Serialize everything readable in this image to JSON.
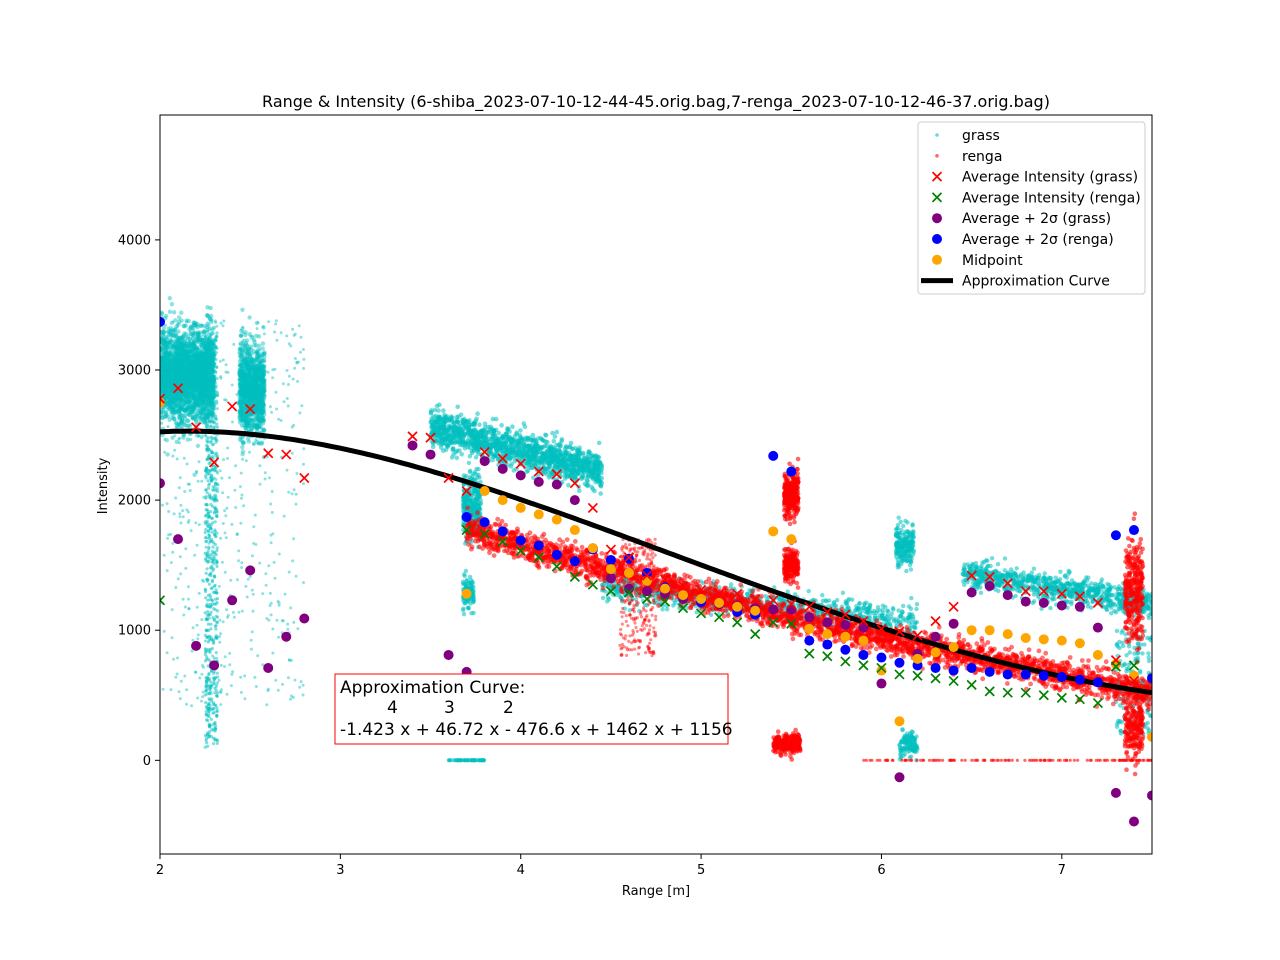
{
  "chart_data": {
    "type": "scatter",
    "title": "Range & Intensity (6-shiba_2023-07-10-12-44-45.orig.bag,7-renga_2023-07-10-12-46-37.orig.bag)",
    "xlabel": "Range [m]",
    "ylabel": "Intensity",
    "xlim": [
      2,
      7.5
    ],
    "ylim": [
      -720,
      4960
    ],
    "xticks": [
      2,
      3,
      4,
      5,
      6,
      7
    ],
    "yticks": [
      0,
      1000,
      2000,
      3000,
      4000
    ],
    "grid": false,
    "legend_position": "top-right",
    "legend": [
      {
        "label": "grass",
        "marker": "dot",
        "color": "#00bfbf"
      },
      {
        "label": "renga",
        "marker": "dot",
        "color": "#ff0000"
      },
      {
        "label": "Average Intensity (grass)",
        "marker": "x",
        "color": "#ff0000"
      },
      {
        "label": "Average Intensity (renga)",
        "marker": "x",
        "color": "#008000"
      },
      {
        "label": "Average + 2σ (grass)",
        "marker": "circle",
        "color": "#800080"
      },
      {
        "label": "Average + 2σ (renga)",
        "marker": "circle",
        "color": "#0000ff"
      },
      {
        "label": "Midpoint",
        "marker": "circle",
        "color": "#ffa500"
      },
      {
        "label": "Approximation Curve",
        "marker": "line",
        "color": "#000000"
      }
    ],
    "annotation": {
      "line1": "Approximation Curve:",
      "exponents": [
        "4",
        "3",
        "2"
      ],
      "line3": "-1.423 x + 46.72 x - 476.6 x + 1462 x + 1156",
      "border_color": "#ff0000"
    },
    "approximation_curve": {
      "coefficients": [
        -1.423,
        46.72,
        -476.6,
        1462,
        1156
      ],
      "color": "#000000"
    },
    "series": [
      {
        "name": "Average Intensity (grass)",
        "marker": "x",
        "color": "#ff0000",
        "points": [
          [
            2.0,
            2780
          ],
          [
            2.1,
            2860
          ],
          [
            2.2,
            2560
          ],
          [
            2.3,
            2290
          ],
          [
            2.4,
            2720
          ],
          [
            2.5,
            2700
          ],
          [
            2.6,
            2360
          ],
          [
            2.7,
            2350
          ],
          [
            2.8,
            2170
          ],
          [
            3.4,
            2490
          ],
          [
            3.5,
            2480
          ],
          [
            3.6,
            2170
          ],
          [
            3.7,
            2070
          ],
          [
            3.8,
            2370
          ],
          [
            3.9,
            2320
          ],
          [
            4.0,
            2280
          ],
          [
            4.1,
            2220
          ],
          [
            4.2,
            2200
          ],
          [
            4.3,
            2130
          ],
          [
            4.4,
            1940
          ],
          [
            4.5,
            1620
          ],
          [
            4.6,
            1560
          ],
          [
            4.7,
            1420
          ],
          [
            4.8,
            1390
          ],
          [
            4.9,
            1340
          ],
          [
            5.0,
            1310
          ],
          [
            5.1,
            1280
          ],
          [
            5.2,
            1280
          ],
          [
            5.3,
            1240
          ],
          [
            5.4,
            1230
          ],
          [
            5.5,
            1200
          ],
          [
            5.6,
            1180
          ],
          [
            5.7,
            1140
          ],
          [
            5.8,
            1120
          ],
          [
            5.9,
            1070
          ],
          [
            6.0,
            1010
          ],
          [
            6.1,
            990
          ],
          [
            6.2,
            960
          ],
          [
            6.3,
            1070
          ],
          [
            6.4,
            1180
          ],
          [
            6.5,
            1420
          ],
          [
            6.6,
            1410
          ],
          [
            6.7,
            1360
          ],
          [
            6.8,
            1300
          ],
          [
            6.9,
            1300
          ],
          [
            7.0,
            1280
          ],
          [
            7.1,
            1260
          ],
          [
            7.2,
            1210
          ],
          [
            7.3,
            770
          ],
          [
            7.4,
            610
          ]
        ]
      },
      {
        "name": "Average Intensity (renga)",
        "marker": "x",
        "color": "#008000",
        "points": [
          [
            2.0,
            1230
          ],
          [
            3.7,
            1770
          ],
          [
            3.8,
            1740
          ],
          [
            3.9,
            1680
          ],
          [
            4.0,
            1610
          ],
          [
            4.1,
            1560
          ],
          [
            4.2,
            1490
          ],
          [
            4.3,
            1410
          ],
          [
            4.4,
            1350
          ],
          [
            4.5,
            1300
          ],
          [
            4.6,
            1290
          ],
          [
            4.7,
            1240
          ],
          [
            4.8,
            1220
          ],
          [
            4.9,
            1170
          ],
          [
            5.0,
            1130
          ],
          [
            5.1,
            1100
          ],
          [
            5.2,
            1060
          ],
          [
            5.3,
            970
          ],
          [
            5.4,
            1060
          ],
          [
            5.5,
            1050
          ],
          [
            5.6,
            820
          ],
          [
            5.7,
            800
          ],
          [
            5.8,
            760
          ],
          [
            5.9,
            730
          ],
          [
            6.0,
            710
          ],
          [
            6.1,
            660
          ],
          [
            6.2,
            650
          ],
          [
            6.3,
            630
          ],
          [
            6.4,
            610
          ],
          [
            6.5,
            580
          ],
          [
            6.6,
            530
          ],
          [
            6.7,
            520
          ],
          [
            6.8,
            520
          ],
          [
            6.9,
            500
          ],
          [
            7.0,
            480
          ],
          [
            7.1,
            470
          ],
          [
            7.2,
            440
          ],
          [
            7.3,
            720
          ],
          [
            7.4,
            730
          ]
        ]
      },
      {
        "name": "Average + 2σ (grass)",
        "marker": "circle",
        "color": "#800080",
        "points": [
          [
            2.0,
            2130
          ],
          [
            2.1,
            1700
          ],
          [
            2.2,
            880
          ],
          [
            2.3,
            730
          ],
          [
            2.4,
            1230
          ],
          [
            2.5,
            1460
          ],
          [
            2.6,
            710
          ],
          [
            2.7,
            950
          ],
          [
            2.8,
            1090
          ],
          [
            3.4,
            2420
          ],
          [
            3.5,
            2350
          ],
          [
            3.6,
            810
          ],
          [
            3.7,
            680
          ],
          [
            3.8,
            2300
          ],
          [
            3.9,
            2240
          ],
          [
            4.0,
            2190
          ],
          [
            4.1,
            2140
          ],
          [
            4.2,
            2120
          ],
          [
            4.3,
            2000
          ],
          [
            4.4,
            1630
          ],
          [
            4.5,
            1400
          ],
          [
            4.6,
            1320
          ],
          [
            4.7,
            1300
          ],
          [
            4.8,
            1280
          ],
          [
            4.9,
            1240
          ],
          [
            5.0,
            1210
          ],
          [
            5.1,
            1200
          ],
          [
            5.2,
            1190
          ],
          [
            5.3,
            1170
          ],
          [
            5.4,
            1160
          ],
          [
            5.5,
            1160
          ],
          [
            5.6,
            1100
          ],
          [
            5.7,
            1060
          ],
          [
            5.8,
            1040
          ],
          [
            5.9,
            1020
          ],
          [
            6.0,
            590
          ],
          [
            6.1,
            -130
          ],
          [
            6.2,
            820
          ],
          [
            6.3,
            950
          ],
          [
            6.4,
            1050
          ],
          [
            6.5,
            1290
          ],
          [
            6.6,
            1340
          ],
          [
            6.7,
            1270
          ],
          [
            6.8,
            1220
          ],
          [
            6.9,
            1210
          ],
          [
            7.0,
            1190
          ],
          [
            7.1,
            1180
          ],
          [
            7.2,
            1020
          ],
          [
            7.3,
            -250
          ],
          [
            7.4,
            -470
          ],
          [
            7.5,
            -270
          ]
        ]
      },
      {
        "name": "Average + 2σ (renga)",
        "marker": "circle",
        "color": "#0000ff",
        "points": [
          [
            2.0,
            3370
          ],
          [
            3.7,
            1870
          ],
          [
            3.8,
            1830
          ],
          [
            3.9,
            1760
          ],
          [
            4.0,
            1690
          ],
          [
            4.1,
            1650
          ],
          [
            4.2,
            1580
          ],
          [
            4.3,
            1530
          ],
          [
            4.4,
            1620
          ],
          [
            4.5,
            1540
          ],
          [
            4.6,
            1550
          ],
          [
            4.7,
            1440
          ],
          [
            4.8,
            1330
          ],
          [
            4.9,
            1270
          ],
          [
            5.0,
            1220
          ],
          [
            5.1,
            1210
          ],
          [
            5.2,
            1140
          ],
          [
            5.3,
            1120
          ],
          [
            5.4,
            2340
          ],
          [
            5.5,
            2220
          ],
          [
            5.6,
            920
          ],
          [
            5.7,
            890
          ],
          [
            5.8,
            850
          ],
          [
            5.9,
            810
          ],
          [
            6.0,
            790
          ],
          [
            6.1,
            750
          ],
          [
            6.2,
            730
          ],
          [
            6.3,
            710
          ],
          [
            6.4,
            690
          ],
          [
            6.5,
            710
          ],
          [
            6.6,
            680
          ],
          [
            6.7,
            660
          ],
          [
            6.8,
            660
          ],
          [
            6.9,
            650
          ],
          [
            7.0,
            640
          ],
          [
            7.1,
            620
          ],
          [
            7.2,
            600
          ],
          [
            7.3,
            1730
          ],
          [
            7.4,
            1770
          ],
          [
            7.5,
            630
          ]
        ]
      },
      {
        "name": "Midpoint",
        "marker": "circle",
        "color": "#ffa500",
        "points": [
          [
            2.0,
            2750
          ],
          [
            3.7,
            1280
          ],
          [
            3.8,
            2070
          ],
          [
            3.9,
            2000
          ],
          [
            4.0,
            1940
          ],
          [
            4.1,
            1890
          ],
          [
            4.2,
            1850
          ],
          [
            4.3,
            1770
          ],
          [
            4.4,
            1630
          ],
          [
            4.5,
            1470
          ],
          [
            4.6,
            1440
          ],
          [
            4.7,
            1380
          ],
          [
            4.8,
            1320
          ],
          [
            4.9,
            1270
          ],
          [
            5.0,
            1240
          ],
          [
            5.1,
            1210
          ],
          [
            5.2,
            1180
          ],
          [
            5.3,
            1150
          ],
          [
            5.4,
            1760
          ],
          [
            5.5,
            1700
          ],
          [
            5.6,
            1010
          ],
          [
            5.7,
            970
          ],
          [
            5.8,
            950
          ],
          [
            5.9,
            920
          ],
          [
            6.0,
            690
          ],
          [
            6.1,
            300
          ],
          [
            6.2,
            780
          ],
          [
            6.3,
            830
          ],
          [
            6.4,
            870
          ],
          [
            6.5,
            1000
          ],
          [
            6.6,
            1000
          ],
          [
            6.7,
            970
          ],
          [
            6.8,
            940
          ],
          [
            6.9,
            930
          ],
          [
            7.0,
            920
          ],
          [
            7.1,
            900
          ],
          [
            7.2,
            810
          ],
          [
            7.3,
            740
          ],
          [
            7.4,
            650
          ],
          [
            7.5,
            180
          ]
        ]
      }
    ]
  }
}
